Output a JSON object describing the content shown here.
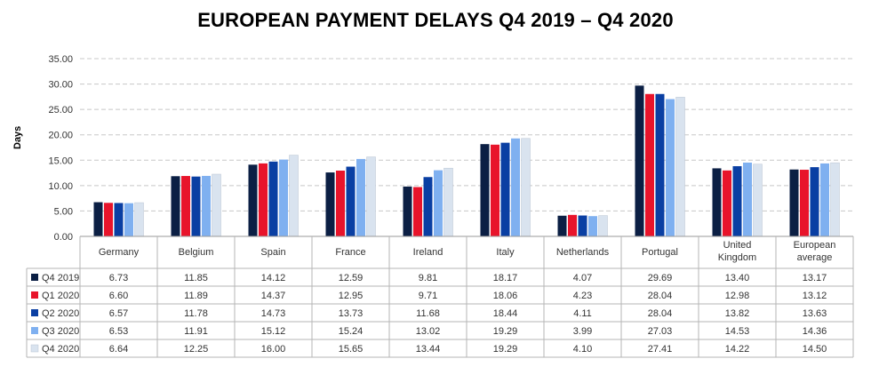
{
  "chart_data": {
    "type": "bar",
    "title": "EUROPEAN PAYMENT DELAYS Q4 2019 – Q4 2020",
    "ylabel": "Days",
    "xlabel": "",
    "ylim": [
      0,
      35
    ],
    "yticks": [
      "0.00",
      "5.00",
      "10.00",
      "15.00",
      "20.00",
      "25.00",
      "30.00",
      "35.00"
    ],
    "grid": true,
    "legend": "data-table-below",
    "categories": [
      [
        "Germany"
      ],
      [
        "Belgium"
      ],
      [
        "Spain"
      ],
      [
        "France"
      ],
      [
        "Ireland"
      ],
      [
        "Italy"
      ],
      [
        "Netherlands"
      ],
      [
        "Portugal"
      ],
      [
        "United",
        "Kingdom"
      ],
      [
        "European",
        "average"
      ]
    ],
    "series": [
      {
        "name": "Q4 2019",
        "color": "#0b1f44",
        "values": [
          6.73,
          11.85,
          14.12,
          12.59,
          9.81,
          18.17,
          4.07,
          29.69,
          13.4,
          13.17
        ],
        "labels": [
          "6.73",
          "11.85",
          "14.12",
          "12.59",
          "9.81",
          "18.17",
          "4.07",
          "29.69",
          "13.40",
          "13.17"
        ]
      },
      {
        "name": "Q1 2020",
        "color": "#e8142b",
        "values": [
          6.6,
          11.89,
          14.37,
          12.95,
          9.71,
          18.06,
          4.23,
          28.04,
          12.98,
          13.12
        ],
        "labels": [
          "6.60",
          "11.89",
          "14.37",
          "12.95",
          "9.71",
          "18.06",
          "4.23",
          "28.04",
          "12.98",
          "13.12"
        ]
      },
      {
        "name": "Q2 2020",
        "color": "#0a3fa3",
        "values": [
          6.57,
          11.78,
          14.73,
          13.73,
          11.68,
          18.44,
          4.11,
          28.04,
          13.82,
          13.63
        ],
        "labels": [
          "6.57",
          "11.78",
          "14.73",
          "13.73",
          "11.68",
          "18.44",
          "4.11",
          "28.04",
          "13.82",
          "13.63"
        ]
      },
      {
        "name": "Q3 2020",
        "color": "#7fb0f0",
        "values": [
          6.53,
          11.91,
          15.12,
          15.24,
          13.02,
          19.29,
          3.99,
          27.03,
          14.53,
          14.36
        ],
        "labels": [
          "6.53",
          "11.91",
          "15.12",
          "15.24",
          "13.02",
          "19.29",
          "3.99",
          "27.03",
          "14.53",
          "14.36"
        ]
      },
      {
        "name": "Q4 2020",
        "color": "#d9e3ef",
        "values": [
          6.64,
          12.25,
          16.0,
          15.65,
          13.44,
          19.29,
          4.1,
          27.41,
          14.22,
          14.5
        ],
        "labels": [
          "6.64",
          "12.25",
          "16.00",
          "15.65",
          "13.44",
          "19.29",
          "4.10",
          "27.41",
          "14.22",
          "14.50"
        ]
      }
    ]
  }
}
